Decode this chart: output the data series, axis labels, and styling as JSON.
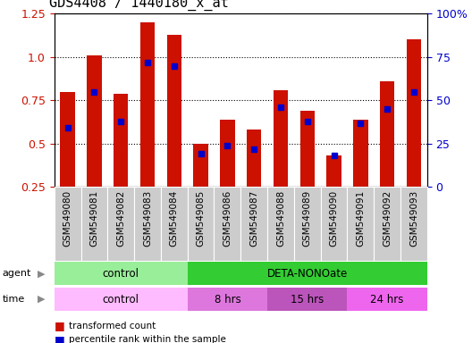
{
  "title": "GDS4408 / 1440180_x_at",
  "samples": [
    "GSM549080",
    "GSM549081",
    "GSM549082",
    "GSM549083",
    "GSM549084",
    "GSM549085",
    "GSM549086",
    "GSM549087",
    "GSM549088",
    "GSM549089",
    "GSM549090",
    "GSM549091",
    "GSM549092",
    "GSM549093"
  ],
  "red_values": [
    0.8,
    1.01,
    0.79,
    1.2,
    1.13,
    0.5,
    0.64,
    0.58,
    0.81,
    0.69,
    0.43,
    0.64,
    0.86,
    1.1
  ],
  "blue_percentiles": [
    34,
    55,
    38,
    72,
    70,
    19,
    24,
    22,
    46,
    38,
    18,
    37,
    45,
    55
  ],
  "ylim_left": [
    0.25,
    1.25
  ],
  "ylim_right": [
    0,
    100
  ],
  "yticks_left": [
    0.25,
    0.5,
    0.75,
    1.0,
    1.25
  ],
  "yticks_right": [
    0,
    25,
    50,
    75,
    100
  ],
  "agent_groups": [
    {
      "label": "control",
      "start": 0,
      "end": 5,
      "color": "#99ee99"
    },
    {
      "label": "DETA-NONOate",
      "start": 5,
      "end": 14,
      "color": "#33cc33"
    }
  ],
  "time_groups": [
    {
      "label": "control",
      "start": 0,
      "end": 5,
      "color": "#ffbbff"
    },
    {
      "label": "8 hrs",
      "start": 5,
      "end": 8,
      "color": "#dd77dd"
    },
    {
      "label": "15 hrs",
      "start": 8,
      "end": 11,
      "color": "#bb55bb"
    },
    {
      "label": "24 hrs",
      "start": 11,
      "end": 14,
      "color": "#ee66ee"
    }
  ],
  "bar_color": "#cc1100",
  "blue_color": "#0000cc",
  "title_fontsize": 11,
  "sample_fontsize": 7.5,
  "axis_fontsize": 9,
  "axis_tick_color_left": "#cc1100",
  "axis_tick_color_right": "#0000cc",
  "background_color": "#ffffff",
  "xtick_bg_color": "#cccccc",
  "legend_red_label": "transformed count",
  "legend_blue_label": "percentile rank within the sample"
}
